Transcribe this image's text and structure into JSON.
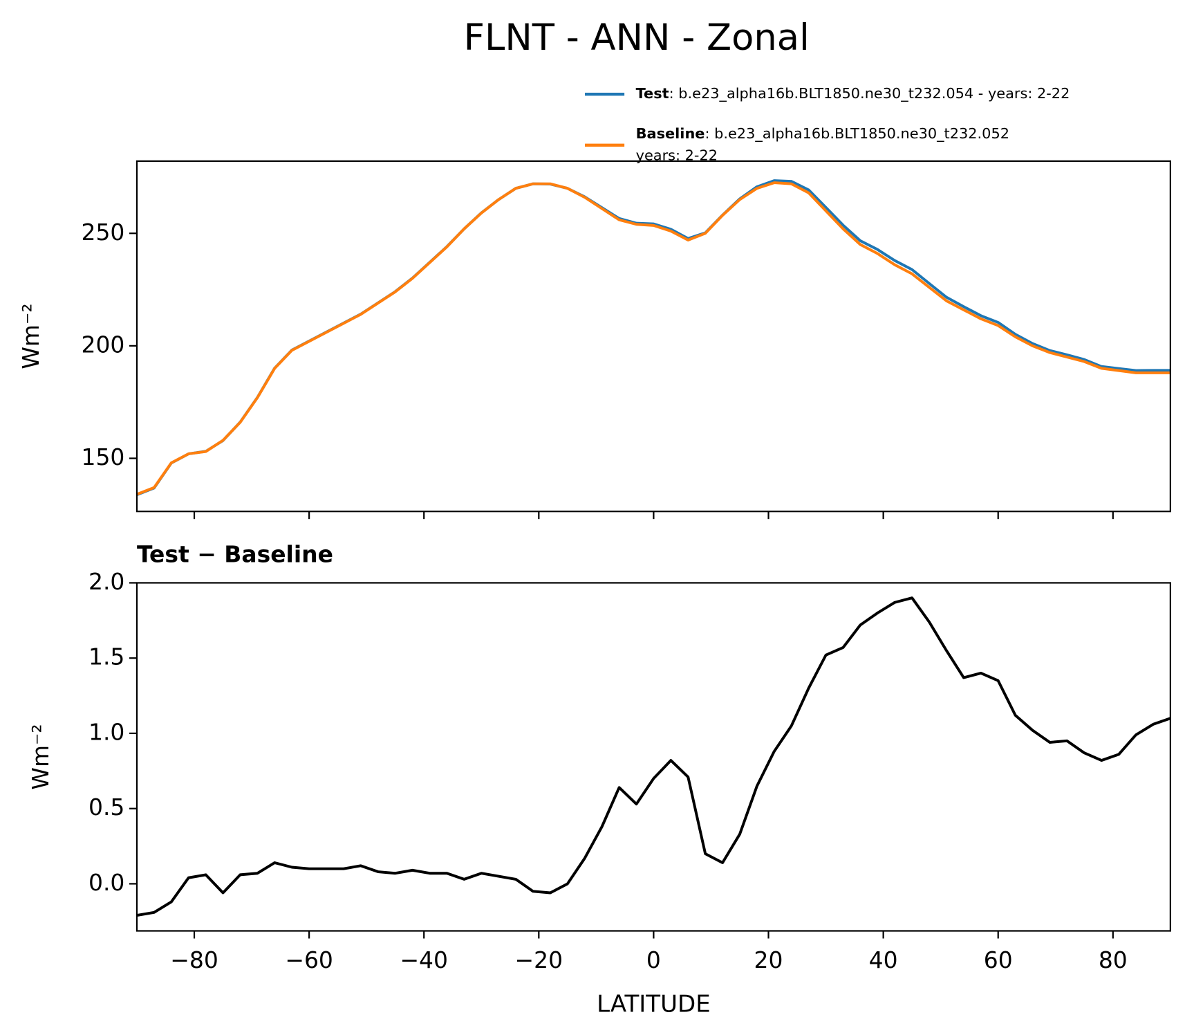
{
  "chart_data": [
    {
      "type": "line",
      "title": "FLNT - ANN - Zonal",
      "ylabel": "Wm⁻²",
      "x": [
        -90,
        -87,
        -84,
        -81,
        -78,
        -75,
        -72,
        -69,
        -66,
        -63,
        -60,
        -57,
        -54,
        -51,
        -48,
        -45,
        -42,
        -39,
        -36,
        -33,
        -30,
        -27,
        -24,
        -21,
        -18,
        -15,
        -12,
        -9,
        -6,
        -3,
        0,
        3,
        6,
        9,
        12,
        15,
        18,
        21,
        24,
        27,
        30,
        33,
        36,
        39,
        42,
        45,
        48,
        51,
        54,
        57,
        60,
        63,
        66,
        69,
        72,
        75,
        78,
        81,
        84,
        87,
        90
      ],
      "series": [
        {
          "name": "Test",
          "description": [
            ": b.e23_alpha16b.BLT1850.ne30_t232.054 - years: 2-22"
          ],
          "color": "#1f77b4",
          "values": [
            133.8,
            136.8,
            147.9,
            152.0,
            153.1,
            157.9,
            166.1,
            177.1,
            190.1,
            198.1,
            202.1,
            206.1,
            210.1,
            214.1,
            219.1,
            224.1,
            230.1,
            237.1,
            244.1,
            252.0,
            259.1,
            265.0,
            270.0,
            272.0,
            271.9,
            270.0,
            266.2,
            261.4,
            256.6,
            254.5,
            254.2,
            251.8,
            247.7,
            250.2,
            258.1,
            265.3,
            270.7,
            273.4,
            273.1,
            269.3,
            261.5,
            253.6,
            246.7,
            242.8,
            237.9,
            233.9,
            227.7,
            221.6,
            217.4,
            213.4,
            210.4,
            205.1,
            201.0,
            197.9,
            196.0,
            193.9,
            190.8,
            189.9,
            189.0,
            189.1,
            189.1
          ]
        },
        {
          "name": "Baseline",
          "description": [
            ": b.e23_alpha16b.BLT1850.ne30_t232.052",
            "years: 2-22"
          ],
          "color": "#ff7f0e",
          "values": [
            134,
            137,
            148,
            152,
            153,
            158,
            166,
            177,
            190,
            198,
            202,
            206,
            210,
            214,
            219,
            224,
            230,
            237,
            244,
            252,
            259,
            265,
            270,
            272,
            272,
            270,
            266,
            261,
            256,
            254,
            253.5,
            251,
            247,
            250,
            258,
            265,
            270,
            272.5,
            272,
            268,
            260,
            252,
            245,
            241,
            236,
            232,
            226,
            220,
            216,
            212,
            209,
            204,
            200,
            197,
            195,
            193,
            190,
            189,
            188,
            188,
            188
          ]
        }
      ],
      "legend": "upper right",
      "xlim": [
        -90,
        90
      ],
      "ylim": [
        126.4,
        282.1
      ],
      "xticks": [
        -80,
        -60,
        -40,
        -20,
        0,
        20,
        40,
        60,
        80
      ],
      "yticks": [
        150,
        200,
        250
      ]
    },
    {
      "type": "line",
      "title": "Test − Baseline",
      "ylabel": "Wm⁻²",
      "xlabel": "LATITUDE",
      "x": [
        -90,
        -87,
        -84,
        -81,
        -78,
        -75,
        -72,
        -69,
        -66,
        -63,
        -60,
        -57,
        -54,
        -51,
        -48,
        -45,
        -42,
        -39,
        -36,
        -33,
        -30,
        -27,
        -24,
        -21,
        -18,
        -15,
        -12,
        -9,
        -6,
        -3,
        0,
        3,
        6,
        9,
        12,
        15,
        18,
        21,
        24,
        27,
        30,
        33,
        36,
        39,
        42,
        45,
        48,
        51,
        54,
        57,
        60,
        63,
        66,
        69,
        72,
        75,
        78,
        81,
        84,
        87,
        90
      ],
      "series": [
        {
          "color": "#000000",
          "values": [
            -0.21,
            -0.19,
            -0.12,
            0.04,
            0.06,
            -0.06,
            0.06,
            0.07,
            0.14,
            0.11,
            0.1,
            0.1,
            0.1,
            0.12,
            0.08,
            0.07,
            0.09,
            0.07,
            0.07,
            0.03,
            0.07,
            0.05,
            0.03,
            -0.05,
            -0.06,
            0.0,
            0.17,
            0.38,
            0.64,
            0.53,
            0.7,
            0.82,
            0.71,
            0.2,
            0.14,
            0.33,
            0.65,
            0.88,
            1.05,
            1.3,
            1.52,
            1.57,
            1.72,
            1.8,
            1.87,
            1.9,
            1.74,
            1.55,
            1.37,
            1.4,
            1.35,
            1.12,
            1.02,
            0.94,
            0.95,
            0.87,
            0.82,
            0.86,
            0.99,
            1.06,
            1.1
          ]
        }
      ],
      "xlim": [
        -90,
        90
      ],
      "ylim": [
        -0.313,
        2.0
      ],
      "xticks": [
        {
          "value": -80,
          "label": "−80"
        },
        {
          "value": -60,
          "label": "−60"
        },
        {
          "value": -40,
          "label": "−40"
        },
        {
          "value": -20,
          "label": "−20"
        },
        0,
        20,
        40,
        60,
        80
      ],
      "yticks": [
        {
          "value": 0,
          "label": "0.0"
        },
        0.5,
        {
          "value": 1,
          "label": "1.0"
        },
        1.5,
        {
          "value": 2,
          "label": "2.0"
        }
      ]
    }
  ]
}
